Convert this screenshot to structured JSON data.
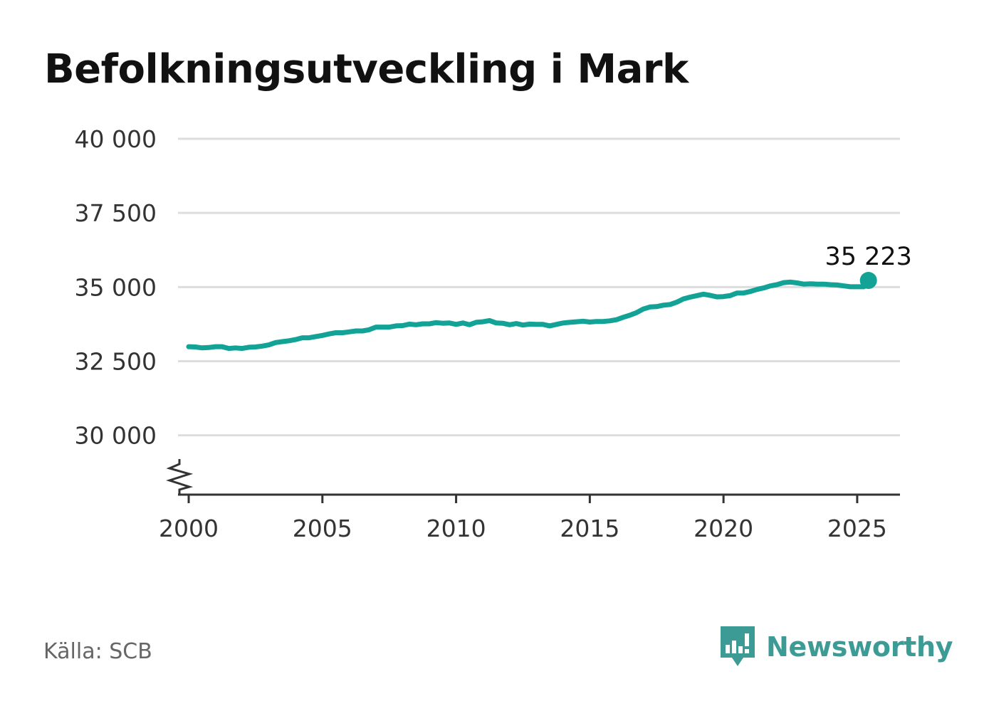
{
  "title": "Befolkningsutveckling i Mark",
  "source": "Källa: SCB",
  "brand": {
    "name": "Newsworthy",
    "icon": "bar-chart-speech-bubble-icon",
    "color": "#3d9b95"
  },
  "colors": {
    "line": "#12a296",
    "grid": "#dddddd",
    "axis": "#333333"
  },
  "chart_data": {
    "type": "line",
    "title": "Befolkningsutveckling i Mark",
    "xlabel": "",
    "ylabel": "",
    "xlim": [
      1999.6,
      2026.6
    ],
    "ylim": [
      28000,
      40000
    ],
    "y_axis_broken": true,
    "grid": "horizontal",
    "x_ticks": [
      2000,
      2005,
      2010,
      2015,
      2020,
      2025
    ],
    "x_tick_labels": [
      "2000",
      "2005",
      "2010",
      "2015",
      "2020",
      "2025"
    ],
    "y_ticks": [
      30000,
      32500,
      35000,
      37500,
      40000
    ],
    "y_tick_labels": [
      "30 000",
      "32 500",
      "35 000",
      "37 500",
      "40 000"
    ],
    "last_value_label": "35 223",
    "series": [
      {
        "name": "",
        "x": [
          2000.0,
          2000.25,
          2000.5,
          2000.75,
          2001.0,
          2001.25,
          2001.5,
          2001.75,
          2002.0,
          2002.25,
          2002.5,
          2002.75,
          2003.0,
          2003.25,
          2003.5,
          2003.75,
          2004.0,
          2004.25,
          2004.5,
          2004.75,
          2005.0,
          2005.25,
          2005.5,
          2005.75,
          2006.0,
          2006.25,
          2006.5,
          2006.75,
          2007.0,
          2007.25,
          2007.5,
          2007.75,
          2008.0,
          2008.25,
          2008.5,
          2008.75,
          2009.0,
          2009.25,
          2009.5,
          2009.75,
          2010.0,
          2010.25,
          2010.5,
          2010.75,
          2011.0,
          2011.25,
          2011.5,
          2011.75,
          2012.0,
          2012.25,
          2012.5,
          2012.75,
          2013.0,
          2013.25,
          2013.5,
          2013.75,
          2014.0,
          2014.25,
          2014.5,
          2014.75,
          2015.0,
          2015.25,
          2015.5,
          2015.75,
          2016.0,
          2016.25,
          2016.5,
          2016.75,
          2017.0,
          2017.25,
          2017.5,
          2017.75,
          2018.0,
          2018.25,
          2018.5,
          2018.75,
          2019.0,
          2019.25,
          2019.5,
          2019.75,
          2020.0,
          2020.25,
          2020.5,
          2020.75,
          2021.0,
          2021.25,
          2021.5,
          2021.75,
          2022.0,
          2022.25,
          2022.5,
          2022.75,
          2023.0,
          2023.25,
          2023.5,
          2023.75,
          2024.0,
          2024.25,
          2024.5,
          2024.75,
          2025.0,
          2025.25,
          2025.42
        ],
        "values": [
          32990,
          32980,
          32950,
          32960,
          32990,
          32990,
          32930,
          32950,
          32930,
          32970,
          32980,
          33010,
          33050,
          33130,
          33160,
          33190,
          33230,
          33290,
          33290,
          33330,
          33370,
          33420,
          33460,
          33460,
          33490,
          33520,
          33520,
          33560,
          33650,
          33650,
          33650,
          33690,
          33700,
          33750,
          33730,
          33760,
          33760,
          33800,
          33780,
          33790,
          33740,
          33790,
          33730,
          33810,
          33830,
          33870,
          33790,
          33780,
          33730,
          33770,
          33720,
          33750,
          33740,
          33740,
          33690,
          33740,
          33790,
          33810,
          33830,
          33850,
          33820,
          33840,
          33840,
          33860,
          33900,
          33980,
          34050,
          34140,
          34260,
          34330,
          34340,
          34390,
          34410,
          34490,
          34600,
          34660,
          34710,
          34760,
          34720,
          34670,
          34680,
          34710,
          34800,
          34800,
          34850,
          34920,
          34970,
          35040,
          35080,
          35150,
          35170,
          35140,
          35100,
          35110,
          35100,
          35100,
          35080,
          35070,
          35040,
          35010,
          35010,
          35010,
          35223
        ]
      }
    ]
  }
}
